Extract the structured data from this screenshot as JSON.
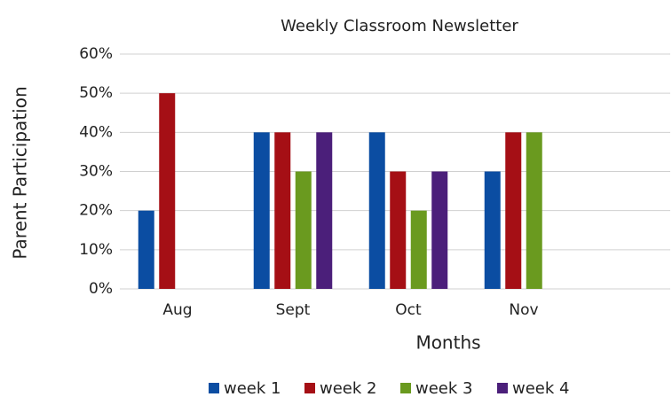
{
  "chart_data": {
    "type": "bar",
    "title": "Weekly Classroom Newsletter",
    "x_label": "Months",
    "y_label": "Parent Participation",
    "categories": [
      "Aug",
      "Sept",
      "Oct",
      "Nov"
    ],
    "series": [
      {
        "name": "week 1",
        "color": "#0b4da2",
        "values": [
          20,
          40,
          40,
          30
        ]
      },
      {
        "name": "week 2",
        "color": "#a50f15",
        "values": [
          50,
          40,
          30,
          40
        ]
      },
      {
        "name": "week 3",
        "color": "#6a9a1f",
        "values": [
          null,
          30,
          20,
          40
        ]
      },
      {
        "name": "week 4",
        "color": "#4b1f7a",
        "values": [
          null,
          40,
          30,
          null
        ]
      }
    ],
    "ylim": [
      0,
      60
    ],
    "yticks": [
      {
        "value": 0,
        "label": "0%"
      },
      {
        "value": 10,
        "label": "10%"
      },
      {
        "value": 20,
        "label": "20%"
      },
      {
        "value": 30,
        "label": "30%"
      },
      {
        "value": 40,
        "label": "40%"
      },
      {
        "value": 50,
        "label": "50%"
      },
      {
        "value": 60,
        "label": "60%"
      }
    ],
    "grid": true,
    "legend": "bottom"
  }
}
